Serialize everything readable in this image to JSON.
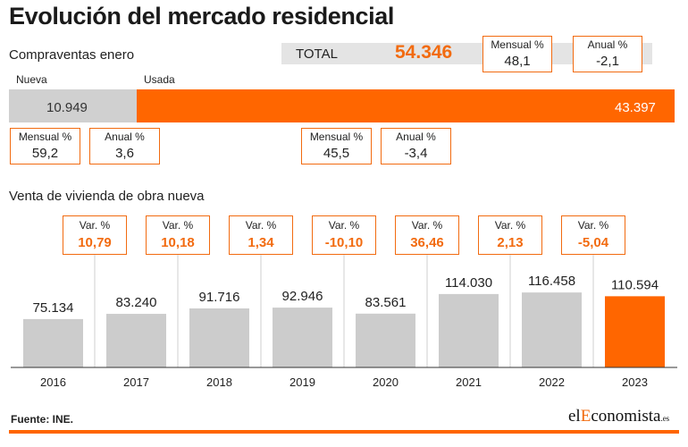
{
  "title": "Evolución del mercado residencial",
  "compraventas": {
    "label": "Compraventas enero",
    "total_label": "TOTAL",
    "total_value": "54.346",
    "total_mensual_label": "Mensual %",
    "total_mensual": "48,1",
    "total_anual_label": "Anual %",
    "total_anual": "-2,1",
    "nueva": {
      "label": "Nueva",
      "value": 10949,
      "value_text": "10.949",
      "mensual_label": "Mensual %",
      "mensual": "59,2",
      "anual_label": "Anual %",
      "anual": "3,6"
    },
    "usada": {
      "label": "Usada",
      "value": 43397,
      "value_text": "43.397",
      "mensual_label": "Mensual %",
      "mensual": "45,5",
      "anual_label": "Anual %",
      "anual": "-3,4"
    }
  },
  "obra_nueva": {
    "label": "Venta de vivienda de obra nueva",
    "var_label": "Var.  %"
  },
  "chart_data": {
    "type": "bar",
    "categories": [
      "2016",
      "2017",
      "2018",
      "2019",
      "2020",
      "2021",
      "2022",
      "2023"
    ],
    "values": [
      75134,
      83240,
      91716,
      92946,
      83561,
      114030,
      116458,
      110594
    ],
    "value_labels": [
      "75.134",
      "83.240",
      "91.716",
      "92.946",
      "83.561",
      "114.030",
      "116.458",
      "110.594"
    ],
    "variations": [
      "10,79",
      "10,18",
      "1,34",
      "-10,10",
      "36,46",
      "2,13",
      "-5,04"
    ],
    "highlight_index": 7,
    "colors": {
      "bar": "#cccccc",
      "highlight": "#ff6600",
      "accent": "#f26b10"
    },
    "title": "",
    "xlabel": "",
    "ylabel": ""
  },
  "footer": {
    "source": "Fuente: INE.",
    "logo_el": "el",
    "logo_accent": "E",
    "logo_rest": "conomista",
    "logo_suffix": ".es"
  }
}
